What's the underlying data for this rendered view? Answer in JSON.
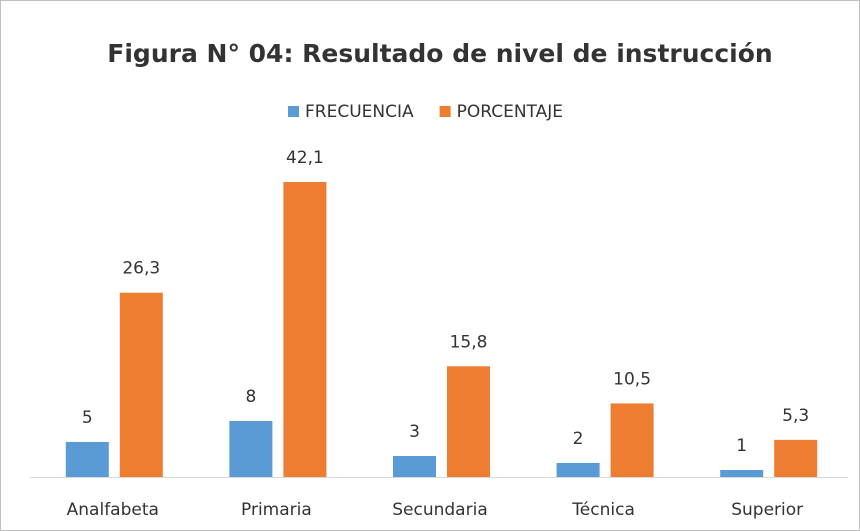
{
  "chart_data": {
    "type": "bar",
    "title": "Figura N° 04:  Resultado de nivel de instrucción",
    "categories": [
      "Analfabeta",
      "Primaria",
      "Secundaria",
      "Técnica",
      "Superior"
    ],
    "series": [
      {
        "name": "FRECUENCIA",
        "color": "#5b9bd5",
        "values": [
          5,
          8,
          3,
          2,
          1
        ]
      },
      {
        "name": "PORCENTAJE",
        "color": "#ed7d31",
        "values": [
          26.3,
          42.1,
          15.8,
          10.5,
          5.3
        ],
        "value_labels": [
          "26,3",
          "42,1",
          "15,8",
          "10,5",
          "5,3"
        ]
      }
    ],
    "legend": "top"
  }
}
